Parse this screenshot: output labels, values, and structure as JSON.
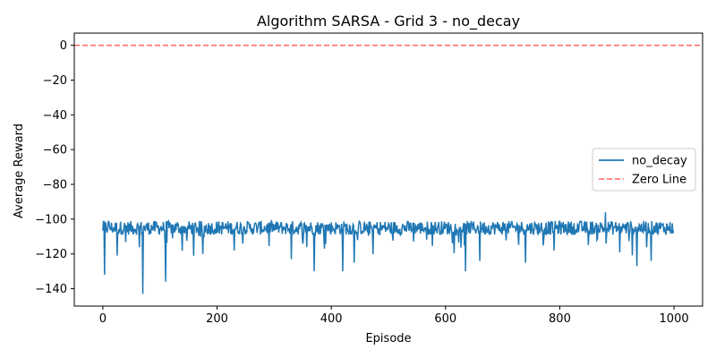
{
  "chart_data": {
    "type": "line",
    "title": "Algorithm SARSA - Grid 3 - no_decay",
    "xlabel": "Episode",
    "ylabel": "Average Reward",
    "xlim": [
      -50,
      1050
    ],
    "ylim": [
      -150,
      7
    ],
    "xticks": [
      0,
      200,
      400,
      600,
      800,
      1000
    ],
    "yticks": [
      0,
      -20,
      -40,
      -60,
      -80,
      -100,
      -120,
      -140
    ],
    "ytick_labels": [
      "0",
      "−20",
      "−40",
      "−60",
      "−80",
      "−100",
      "−120",
      "−140"
    ],
    "grid": false,
    "legend": {
      "position": "center-right",
      "entries": [
        "no_decay",
        "Zero Line"
      ]
    },
    "series": [
      {
        "name": "no_decay",
        "color": "#1f77b4",
        "style": "solid",
        "x_range": [
          0,
          1000
        ],
        "baseline": -105,
        "noise_amplitude": 4,
        "notable_points": [
          [
            3,
            -132
          ],
          [
            10,
            -101
          ],
          [
            25,
            -121
          ],
          [
            70,
            -143
          ],
          [
            110,
            -136
          ],
          [
            175,
            -120
          ],
          [
            230,
            -118
          ],
          [
            330,
            -123
          ],
          [
            370,
            -130
          ],
          [
            420,
            -130
          ],
          [
            440,
            -125
          ],
          [
            635,
            -130
          ],
          [
            660,
            -124
          ],
          [
            740,
            -125
          ],
          [
            790,
            -118
          ],
          [
            880,
            -96
          ],
          [
            935,
            -127
          ],
          [
            960,
            -124
          ],
          [
            1000,
            -107
          ]
        ]
      },
      {
        "name": "Zero Line",
        "color": "#ff0000",
        "style": "dashed",
        "y": 0
      }
    ]
  }
}
